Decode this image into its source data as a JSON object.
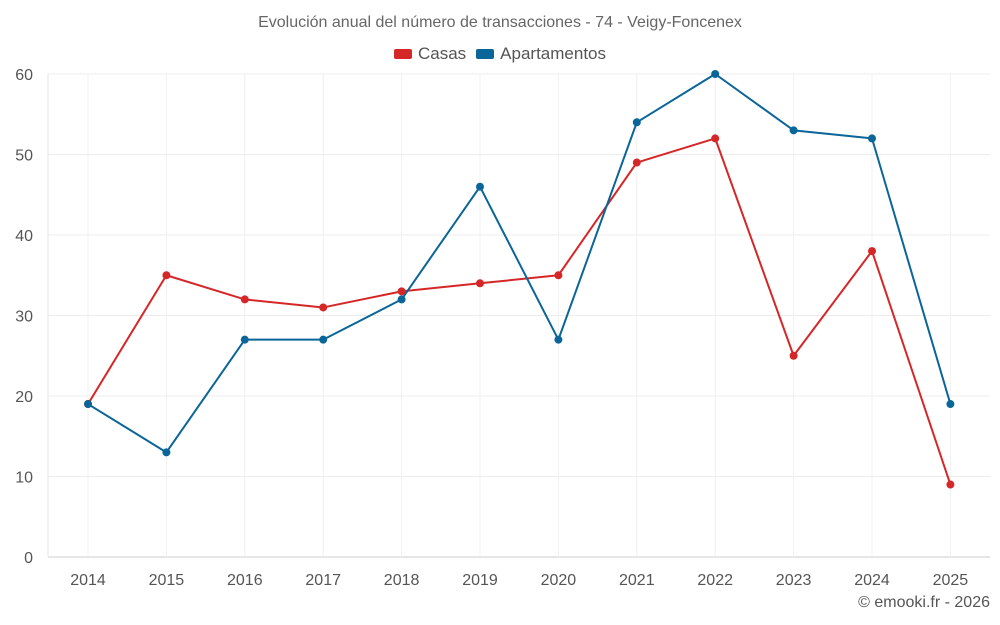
{
  "chart_data": {
    "type": "line",
    "title": "Evolución anual del número de transacciones - 74 - Veigy-Foncenex",
    "categories": [
      "2014",
      "2015",
      "2016",
      "2017",
      "2018",
      "2019",
      "2020",
      "2021",
      "2022",
      "2023",
      "2024",
      "2025"
    ],
    "series": [
      {
        "name": "Casas",
        "color": "#d62728",
        "values": [
          19,
          35,
          32,
          31,
          33,
          34,
          35,
          49,
          52,
          25,
          38,
          9
        ]
      },
      {
        "name": "Apartamentos",
        "color": "#0a6599",
        "values": [
          19,
          13,
          27,
          27,
          32,
          46,
          27,
          54,
          60,
          53,
          52,
          19
        ]
      }
    ],
    "ylim": [
      0,
      60
    ],
    "yticks": [
      0,
      10,
      20,
      30,
      40,
      50,
      60
    ],
    "xlabel": "",
    "ylabel": "",
    "grid": true,
    "legend_position": "top-center"
  },
  "credit": "© emooki.fr - 2026"
}
